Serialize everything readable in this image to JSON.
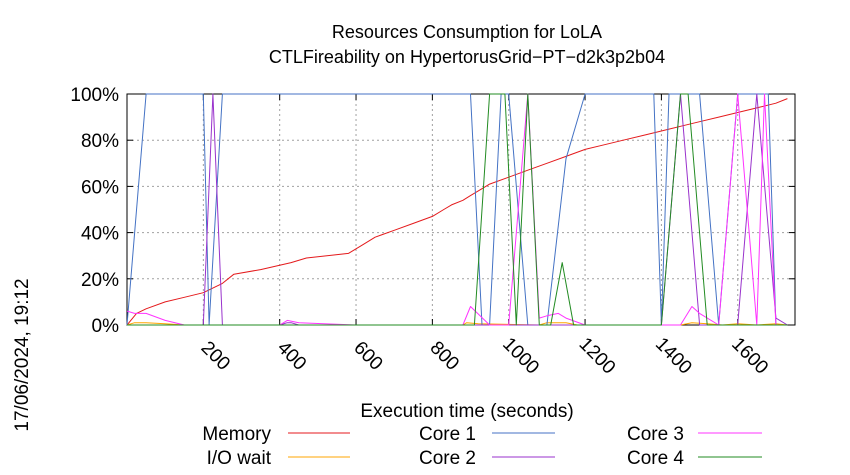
{
  "chart_data": {
    "type": "line",
    "title": "Resources Consumption for LoLA",
    "subtitle": "CTLFireability on HypertorusGrid−PT−d2k3p2b04",
    "xlabel": "Execution time (seconds)",
    "ylabel": "",
    "timestamp": "17/06/2024, 19:12",
    "xlim": [
      0,
      1750
    ],
    "ylim": [
      0,
      100
    ],
    "x_ticks": [
      200,
      400,
      600,
      800,
      1000,
      1200,
      1400,
      1600
    ],
    "x_tick_labels": [
      "200",
      "400",
      "600",
      "800",
      "1000",
      "1200",
      "1400",
      "1600"
    ],
    "y_ticks": [
      0,
      20,
      40,
      60,
      80,
      100
    ],
    "y_tick_labels": [
      "0%",
      "20%",
      "40%",
      "60%",
      "80%",
      "100%"
    ],
    "grid": true,
    "legend_position": "bottom",
    "series": [
      {
        "name": "Memory",
        "color": "#e41a1c",
        "x": [
          0,
          25,
          50,
          100,
          150,
          200,
          250,
          280,
          350,
          430,
          470,
          580,
          620,
          650,
          700,
          750,
          800,
          830,
          850,
          880,
          900,
          930,
          950,
          1000,
          1050,
          1100,
          1150,
          1200,
          1250,
          1300,
          1350,
          1400,
          1450,
          1500,
          1550,
          1600,
          1650,
          1700,
          1730
        ],
        "y": [
          0,
          5,
          7,
          10,
          12,
          14,
          18,
          22,
          24,
          27,
          29,
          31,
          35,
          38,
          41,
          44,
          47,
          50,
          52,
          54,
          56,
          59,
          61,
          64,
          67,
          70,
          73,
          76,
          78,
          80,
          82,
          84,
          86,
          88,
          90,
          92,
          94,
          96,
          98
        ]
      },
      {
        "name": "I/O wait",
        "color": "#ffa500",
        "x": [
          0,
          20,
          50,
          100,
          150,
          200,
          880,
          890,
          920,
          1080,
          1100,
          1150,
          1180,
          1450,
          1480,
          1520,
          1560,
          1600,
          1650,
          1700,
          1730
        ],
        "y": [
          0,
          1,
          1,
          0.5,
          0,
          0,
          0,
          1,
          0.5,
          0,
          1,
          1,
          0,
          0,
          1,
          0.5,
          0,
          0.5,
          0,
          0.5,
          0
        ]
      },
      {
        "name": "Core 1",
        "color": "#4472c4",
        "x": [
          0,
          50,
          200,
          215,
          250,
          300,
          900,
          930,
          950,
          980,
          1000,
          1050,
          1100,
          1150,
          1200,
          1380,
          1400,
          1420,
          1500,
          1550,
          1600,
          1680,
          1700,
          1720,
          1730
        ],
        "y": [
          0,
          100,
          100,
          0,
          100,
          100,
          100,
          0,
          0,
          100,
          100,
          0,
          0,
          72,
          100,
          100,
          0,
          100,
          100,
          0,
          100,
          100,
          0,
          0,
          0
        ]
      },
      {
        "name": "Core 2",
        "color": "#9932cc",
        "x": [
          0,
          200,
          225,
          250,
          280,
          300,
          400,
          420,
          430,
          450,
          600,
          700,
          800,
          880,
          950,
          1000,
          1150,
          1200,
          1400,
          1450,
          1500,
          1550,
          1600,
          1650,
          1700,
          1730
        ],
        "y": [
          0,
          0,
          100,
          0,
          0,
          0,
          0,
          1,
          1,
          0,
          0,
          0,
          0,
          0,
          0,
          0,
          0,
          0,
          0,
          100,
          0,
          0,
          0,
          100,
          3,
          0
        ]
      },
      {
        "name": "Core 3",
        "color": "#ff33ff",
        "x": [
          0,
          20,
          50,
          100,
          150,
          200,
          400,
          420,
          450,
          600,
          800,
          880,
          900,
          950,
          1000,
          1050,
          1080,
          1100,
          1130,
          1150,
          1200,
          1450,
          1480,
          1500,
          1550,
          1600,
          1650,
          1670,
          1700,
          1730
        ],
        "y": [
          6,
          5,
          5,
          2,
          0,
          0,
          0,
          2,
          1,
          0,
          0,
          0,
          8,
          0,
          0,
          100,
          3,
          4,
          5,
          3,
          0,
          0,
          8,
          5,
          0,
          100,
          0,
          100,
          0,
          0
        ]
      },
      {
        "name": "Core 4",
        "color": "#228b22",
        "x": [
          0,
          880,
          910,
          950,
          990,
          1020,
          1050,
          1080,
          1110,
          1140,
          1170,
          1200,
          1400,
          1450,
          1470,
          1520,
          1550,
          1600,
          1650,
          1700,
          1730
        ],
        "y": [
          0,
          0,
          0,
          100,
          100,
          0,
          100,
          0,
          0,
          27,
          0,
          0,
          0,
          100,
          100,
          0,
          0,
          0,
          0,
          0,
          0
        ]
      }
    ]
  }
}
